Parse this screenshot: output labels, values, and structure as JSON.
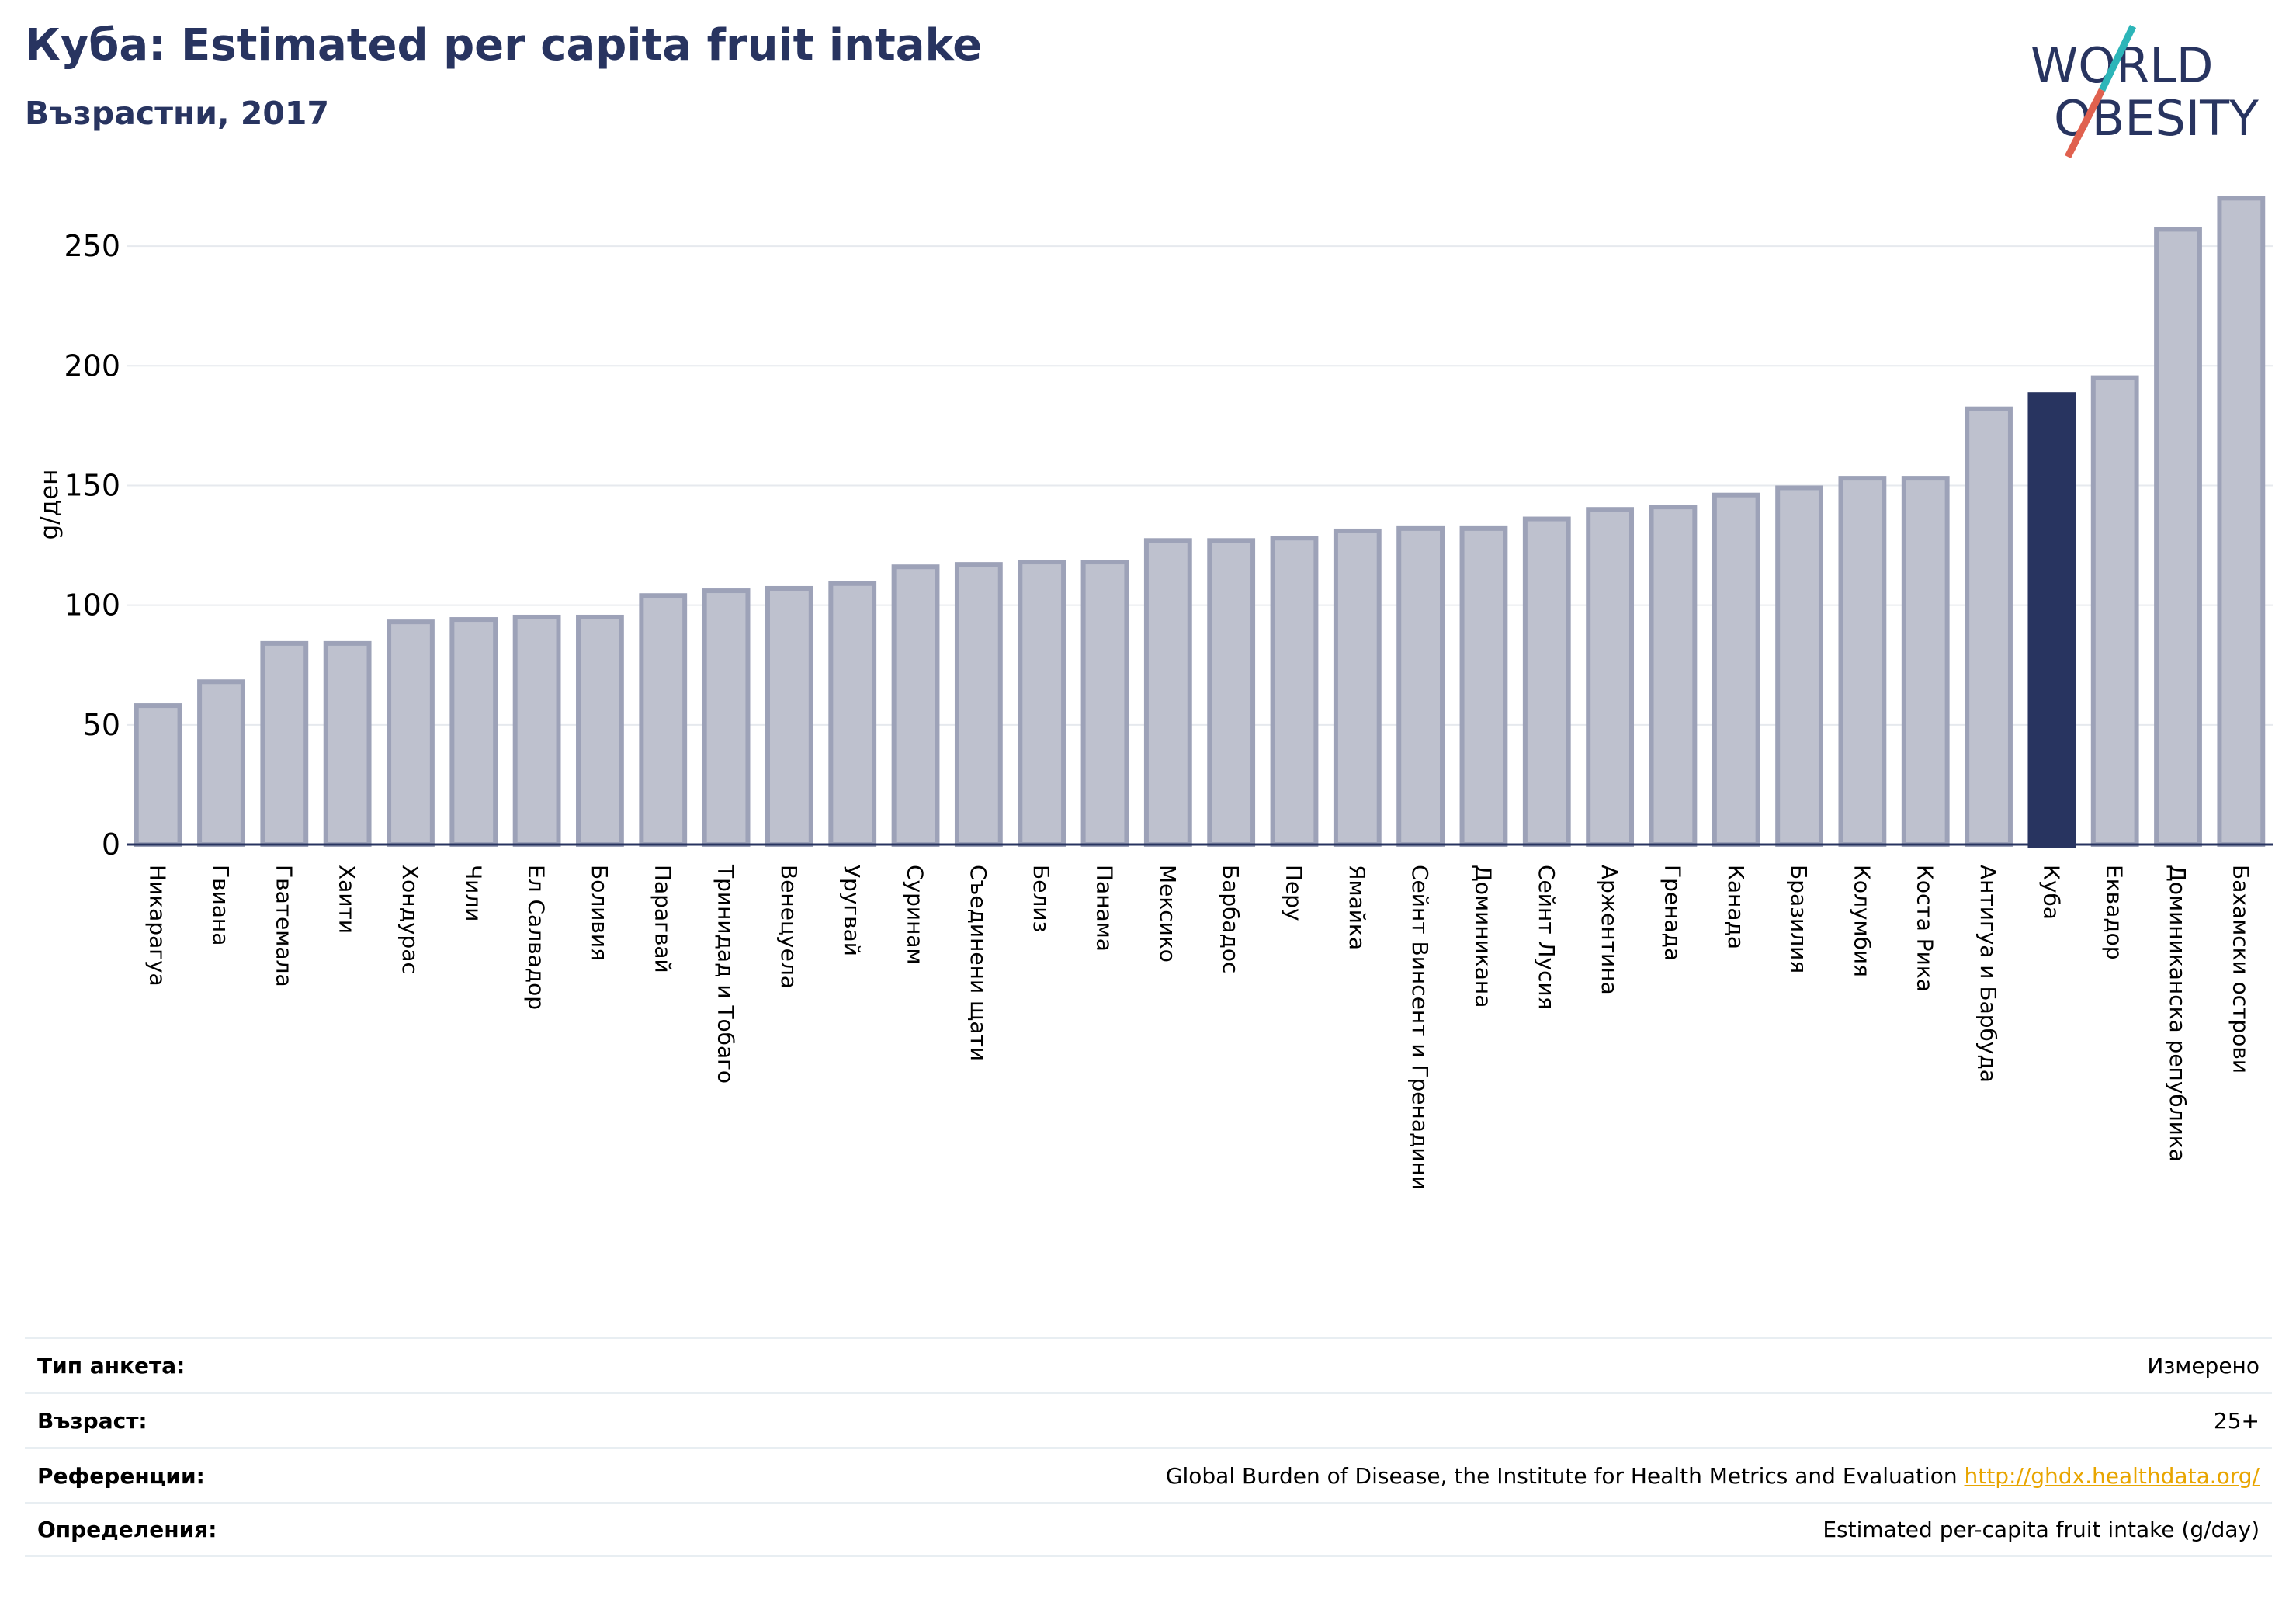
{
  "header": {
    "title": "Куба: Estimated per capita fruit intake",
    "subtitle": "Възрастни, 2017"
  },
  "logo": {
    "line1": "WORLD",
    "line2": "OBESITY"
  },
  "colors": {
    "highlight": "#283460",
    "bar": "#bec1ce",
    "bar_edge": "#9da2b8",
    "accent_teal": "#2cb5b8",
    "accent_red": "#e0614f"
  },
  "chart_data": {
    "type": "bar",
    "ylabel": "g/ден",
    "ylim": [
      0,
      275
    ],
    "yticks": [
      0,
      50,
      100,
      150,
      200,
      250
    ],
    "grid": true,
    "highlight": "Куба",
    "categories": [
      "Никарагуа",
      "Гвиана",
      "Гватемала",
      "Хаити",
      "Хондурас",
      "Чили",
      "Ел Салвадор",
      "Боливия",
      "Парагвай",
      "Тринидад и Тобаго",
      "Венецуела",
      "Уругвай",
      "Суринам",
      "Съединени щати",
      "Белиз",
      "Панама",
      "Мексико",
      "Барбадос",
      "Перу",
      "Ямайка",
      "Сейнт Винсент и Гренадини",
      "Доминикана",
      "Сейнт Лусия",
      "Аржентина",
      "Гренада",
      "Канада",
      "Бразилия",
      "Колумбия",
      "Коста Рика",
      "Антигуа и Барбуда",
      "Куба",
      "Еквадор",
      "Доминиканска република",
      "Бахамски острови"
    ],
    "values": [
      59,
      69,
      85,
      85,
      94,
      95,
      96,
      96,
      105,
      107,
      108,
      110,
      117,
      118,
      119,
      119,
      128,
      128,
      129,
      132,
      133,
      133,
      137,
      141,
      142,
      147,
      150,
      154,
      154,
      183,
      189,
      196,
      258,
      271
    ]
  },
  "info": {
    "rows": [
      {
        "key": "Тип анкета:",
        "value": "Измерено"
      },
      {
        "key": "Възраст:",
        "value": "25+"
      },
      {
        "key": "Референции:",
        "value": "Global Burden of Disease, the Institute for Health Metrics and Evaluation",
        "link": "http://ghdx.healthdata.org/"
      },
      {
        "key": "Определения:",
        "value": "Estimated per-capita fruit intake (g/day)"
      }
    ]
  }
}
